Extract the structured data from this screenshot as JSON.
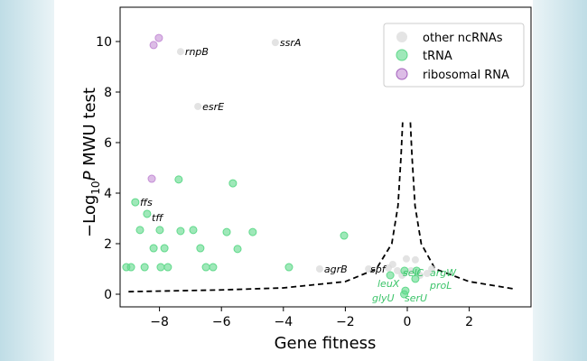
{
  "chart_data": {
    "type": "scatter",
    "xlabel": "Gene fitness",
    "ylabel_parts": {
      "pre": "−Log",
      "sub": "10",
      "italic": "P",
      "post": " MWU test"
    },
    "xlim": [
      -9.3,
      3.9
    ],
    "ylim": [
      -0.5,
      11.4
    ],
    "xticks": [
      -8,
      -6,
      -4,
      -2,
      0,
      2
    ],
    "yticks": [
      0,
      2,
      4,
      6,
      8,
      10
    ],
    "grid": false,
    "legend_position": "top-right",
    "series": [
      {
        "name": "other ncRNAs",
        "color": "#d9d9d9",
        "points": [
          {
            "x": -4.26,
            "y": 9.96,
            "label": "ssrA"
          },
          {
            "x": -7.32,
            "y": 9.6,
            "label": "rnpB"
          },
          {
            "x": -6.76,
            "y": 7.43,
            "label": "esrE"
          },
          {
            "x": -2.83,
            "y": 1.0,
            "label": "agrB"
          },
          {
            "x": -1.25,
            "y": 1.0,
            "label": "spf"
          },
          {
            "x": -0.47,
            "y": 1.18
          },
          {
            "x": -0.03,
            "y": 1.4
          },
          {
            "x": 0.26,
            "y": 1.36
          },
          {
            "x": -0.32,
            "y": 0.93
          },
          {
            "x": -0.17,
            "y": 0.75
          },
          {
            "x": 0.12,
            "y": 0.93
          },
          {
            "x": 0.79,
            "y": 1.0
          },
          {
            "x": 0.64,
            "y": 0.82
          },
          {
            "x": -0.61,
            "y": 1.04
          },
          {
            "x": 0.41,
            "y": 0.75
          }
        ]
      },
      {
        "name": "tRNA",
        "color": "#5fd98a",
        "points": [
          {
            "x": -8.78,
            "y": 3.64,
            "label": "ffs"
          },
          {
            "x": -8.4,
            "y": 3.18,
            "label": "tff"
          },
          {
            "x": -7.38,
            "y": 4.54
          },
          {
            "x": -5.63,
            "y": 4.39
          },
          {
            "x": -8.63,
            "y": 2.54
          },
          {
            "x": -7.99,
            "y": 2.54
          },
          {
            "x": -7.32,
            "y": 2.5
          },
          {
            "x": -6.91,
            "y": 2.54
          },
          {
            "x": -5.83,
            "y": 2.46
          },
          {
            "x": -4.99,
            "y": 2.46
          },
          {
            "x": -2.04,
            "y": 2.32
          },
          {
            "x": -8.19,
            "y": 1.82
          },
          {
            "x": -7.84,
            "y": 1.82
          },
          {
            "x": -6.68,
            "y": 1.82
          },
          {
            "x": -5.48,
            "y": 1.79
          },
          {
            "x": -9.07,
            "y": 1.07
          },
          {
            "x": -8.92,
            "y": 1.07
          },
          {
            "x": -8.48,
            "y": 1.07
          },
          {
            "x": -7.96,
            "y": 1.07
          },
          {
            "x": -7.73,
            "y": 1.07
          },
          {
            "x": -6.5,
            "y": 1.07
          },
          {
            "x": -6.27,
            "y": 1.07
          },
          {
            "x": -3.82,
            "y": 1.07
          },
          {
            "x": -0.55,
            "y": 0.75,
            "label": "leuX"
          },
          {
            "x": -0.09,
            "y": 0.93,
            "label": "selC"
          },
          {
            "x": 0.3,
            "y": 0.93,
            "label": "argW"
          },
          {
            "x": 0.26,
            "y": 0.61,
            "label": "proL"
          },
          {
            "x": -0.06,
            "y": 0.14,
            "label": "serU"
          },
          {
            "x": -0.1,
            "y": 0.0,
            "label": "glyU"
          }
        ]
      },
      {
        "name": "ribosomal RNA",
        "color": "#c58fd6",
        "points": [
          {
            "x": -8.02,
            "y": 10.14
          },
          {
            "x": -8.19,
            "y": 9.86
          },
          {
            "x": -8.25,
            "y": 4.57
          }
        ]
      }
    ],
    "threshold_curve": {
      "left": [
        [
          -9,
          0.1
        ],
        [
          -6,
          0.17
        ],
        [
          -4,
          0.25
        ],
        [
          -2,
          0.5
        ],
        [
          -1,
          1.0
        ],
        [
          -0.5,
          2.0
        ],
        [
          -0.3,
          3.5
        ],
        [
          -0.2,
          5.5
        ],
        [
          -0.15,
          6.8
        ]
      ],
      "right": [
        [
          0.1,
          6.8
        ],
        [
          0.15,
          5.5
        ],
        [
          0.25,
          3.5
        ],
        [
          0.45,
          2.0
        ],
        [
          0.9,
          1.0
        ],
        [
          2,
          0.5
        ],
        [
          3.5,
          0.2
        ]
      ]
    }
  }
}
